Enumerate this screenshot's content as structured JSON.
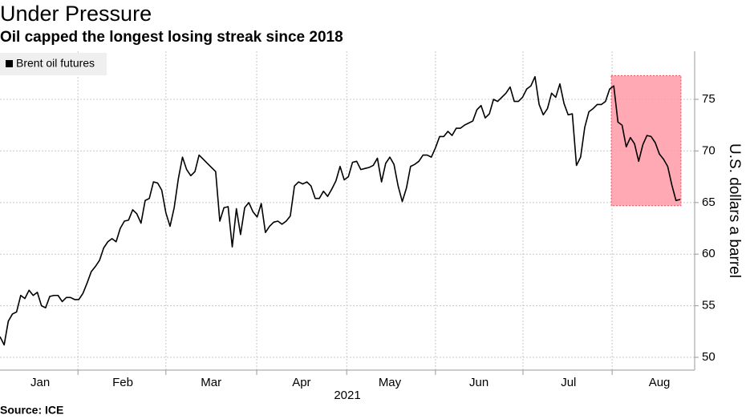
{
  "chart_data": {
    "type": "line",
    "title": "Under Pressure",
    "subtitle": "Oil capped the longest losing streak since 2018",
    "source": "Source: ICE",
    "xlabel": "2021",
    "ylabel": "U.S. dollars a barrel",
    "legend": "top-left",
    "grid": true,
    "series": [
      {
        "name": "Brent oil futures",
        "color": "#000000",
        "values": [
          52.0,
          51.2,
          53.5,
          54.2,
          54.4,
          56.0,
          55.7,
          56.5,
          56.0,
          56.3,
          55.0,
          54.8,
          55.9,
          56.0,
          56.0,
          55.4,
          55.8,
          55.8,
          55.6,
          55.6,
          56.2,
          57.2,
          58.3,
          58.8,
          59.4,
          60.6,
          61.2,
          61.5,
          61.2,
          62.5,
          63.2,
          63.3,
          64.3,
          63.9,
          63.0,
          65.2,
          65.4,
          67.0,
          66.9,
          66.2,
          64.0,
          62.7,
          64.5,
          67.3,
          69.4,
          68.2,
          67.6,
          68.0,
          69.6,
          69.2,
          68.8,
          68.4,
          68.0,
          63.2,
          64.5,
          64.6,
          60.7,
          64.4,
          61.9,
          64.5,
          65.0,
          64.1,
          63.6,
          64.9,
          62.1,
          62.7,
          63.1,
          63.2,
          62.9,
          63.2,
          63.7,
          66.6,
          67.0,
          66.8,
          67.0,
          66.6,
          65.4,
          65.4,
          66.1,
          65.6,
          66.3,
          67.1,
          68.5,
          67.2,
          67.5,
          68.9,
          69.0,
          68.2,
          68.3,
          68.4,
          68.6,
          69.3,
          67.0,
          68.8,
          69.4,
          68.7,
          66.6,
          65.1,
          66.4,
          68.5,
          68.7,
          69.0,
          69.6,
          69.6,
          69.4,
          70.3,
          71.4,
          71.4,
          71.9,
          71.5,
          72.2,
          72.2,
          72.5,
          72.7,
          72.9,
          74.0,
          74.4,
          73.2,
          73.6,
          75.0,
          74.8,
          75.2,
          75.6,
          76.2,
          74.8,
          74.8,
          75.2,
          76.0,
          76.3,
          77.2,
          74.5,
          73.5,
          74.1,
          75.6,
          75.2,
          76.5,
          74.6,
          73.5,
          73.6,
          68.6,
          69.4,
          72.3,
          73.8,
          74.1,
          74.5,
          74.5,
          74.8,
          76.0,
          76.3,
          72.8,
          72.5,
          70.4,
          71.3,
          70.7,
          69.0,
          70.6,
          71.5,
          71.4,
          70.8,
          69.7,
          69.2,
          68.5,
          66.7,
          65.2,
          65.3
        ]
      }
    ],
    "xlim": [
      0,
      167.5
    ],
    "xticks": [
      {
        "value": 9.7,
        "label": "Jan"
      },
      {
        "value": 29.6,
        "label": "Feb"
      },
      {
        "value": 50.9,
        "label": "Mar"
      },
      {
        "value": 72.7,
        "label": "Apr"
      },
      {
        "value": 94.0,
        "label": "May"
      },
      {
        "value": 115.5,
        "label": "Jun"
      },
      {
        "value": 137.1,
        "label": "Jul"
      },
      {
        "value": 159.0,
        "label": "Aug"
      }
    ],
    "xgrid": [
      18.8,
      40.0,
      61.9,
      83.6,
      105.0,
      126.1,
      147.6
    ],
    "ylim": [
      48.76,
      79.66
    ],
    "yticks": [
      50,
      55,
      60,
      65,
      70,
      75
    ],
    "highlight": {
      "x": [
        147.4,
        164.2
      ],
      "y": [
        64.7,
        77.3
      ],
      "color": "#ff9aa8"
    }
  }
}
